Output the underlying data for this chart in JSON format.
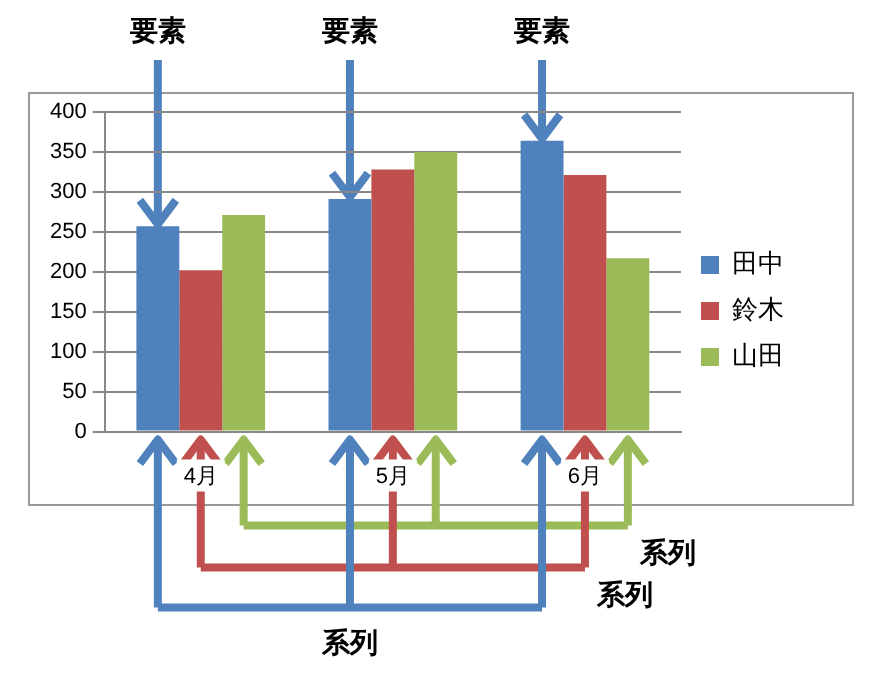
{
  "chart_data": {
    "type": "bar",
    "categories": [
      "4月",
      "5月",
      "6月"
    ],
    "series": [
      {
        "name": "田中",
        "color": "#4f81bd",
        "values": [
          257,
          291,
          364
        ]
      },
      {
        "name": "鈴木",
        "color": "#c0504d",
        "values": [
          202,
          328,
          321
        ]
      },
      {
        "name": "山田",
        "color": "#9bbb59",
        "values": [
          271,
          350,
          217
        ]
      }
    ],
    "ylim": [
      0,
      400
    ],
    "yticks": [
      0,
      50,
      100,
      150,
      200,
      250,
      300,
      350,
      400
    ],
    "grid": "y",
    "legend": "right",
    "annotations": [
      {
        "text": "要素",
        "y": 257
      },
      {
        "text": "要素",
        "y": 291
      },
      {
        "text": "要素",
        "y": 364
      },
      "系列",
      "系列",
      "系列"
    ]
  }
}
